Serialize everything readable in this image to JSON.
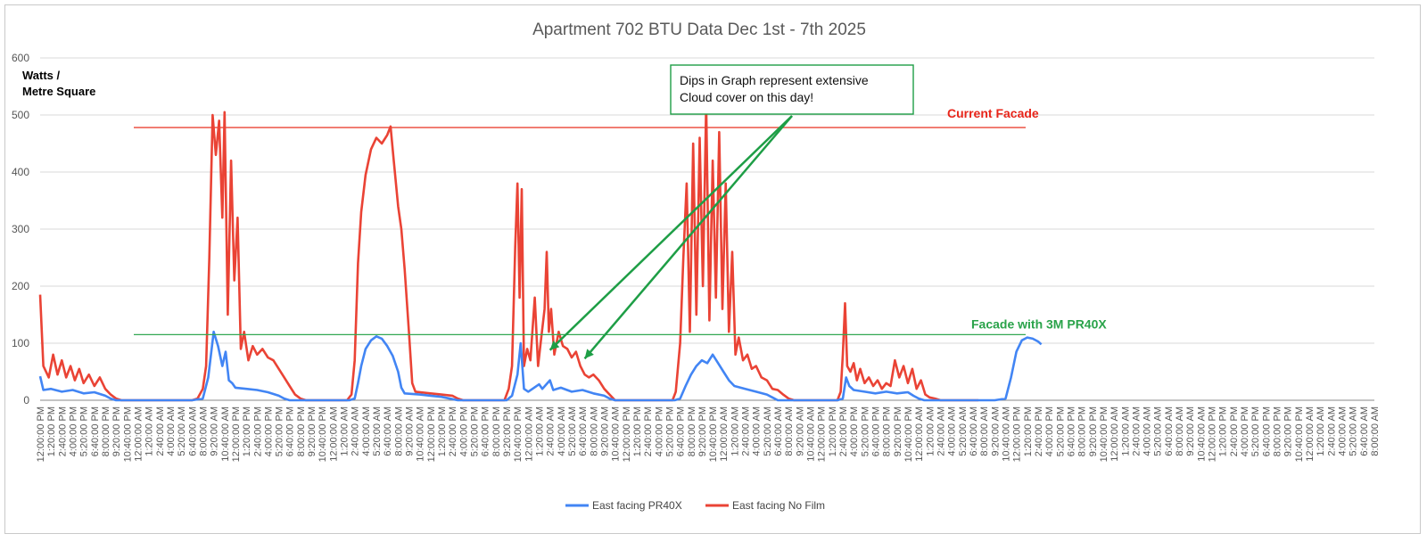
{
  "chart_data": {
    "type": "line",
    "title": "Apartment 702 BTU Data Dec 1st  -  7th 2025",
    "ylabel_lines": [
      "Watts /",
      "Metre Square"
    ],
    "xlabel": "",
    "ylim": [
      0,
      600
    ],
    "y_ticks": [
      0,
      100,
      200,
      300,
      400,
      500,
      600
    ],
    "grid": true,
    "legend_position": "bottom",
    "x_tick_labels": [
      "12:00:00 PM",
      "1:20:00 PM",
      "2:40:00 PM",
      "4:00:00 PM",
      "5:20:00 PM",
      "6:40:00 PM",
      "8:00:00 PM",
      "9:20:00 PM",
      "10:40:00 PM",
      "12:00:00 AM",
      "1:20:00 AM",
      "2:40:00 AM",
      "4:00:00 AM",
      "5:20:00 AM",
      "6:40:00 AM",
      "8:00:00 AM",
      "9:20:00 AM",
      "10:40:00 AM",
      "12:00:00 PM",
      "1:20:00 PM",
      "2:40:00 PM",
      "4:00:00 PM",
      "5:20:00 PM",
      "6:40:00 PM",
      "8:00:00 PM",
      "9:20:00 PM",
      "10:40:00 PM",
      "12:00:00 AM",
      "1:20:00 AM",
      "2:40:00 AM",
      "4:00:00 AM",
      "5:20:00 AM",
      "6:40:00 AM",
      "8:00:00 AM",
      "9:20:00 AM",
      "10:40:00 AM",
      "12:00:00 PM",
      "1:20:00 PM",
      "2:40:00 PM",
      "4:00:00 PM",
      "5:20:00 PM",
      "6:40:00 PM",
      "8:00:00 PM",
      "9:20:00 PM",
      "10:40:00 PM",
      "12:00:00 AM",
      "1:20:00 AM",
      "2:40:00 AM",
      "4:00:00 AM",
      "5:20:00 AM",
      "6:40:00 AM",
      "8:00:00 AM",
      "9:20:00 AM",
      "10:40:00 AM",
      "12:00:00 PM",
      "1:20:00 PM",
      "2:40:00 PM",
      "4:00:00 PM",
      "5:20:00 PM",
      "6:40:00 PM",
      "8:00:00 PM",
      "9:20:00 PM",
      "10:40:00 PM",
      "12:00:00 AM",
      "1:20:00 AM",
      "2:40:00 AM",
      "4:00:00 AM",
      "5:20:00 AM",
      "6:40:00 AM",
      "8:00:00 AM",
      "9:20:00 AM",
      "10:40:00 AM",
      "12:00:00 PM",
      "1:20:00 PM",
      "2:40:00 PM",
      "4:00:00 PM",
      "5:20:00 PM",
      "6:40:00 PM",
      "8:00:00 PM",
      "9:20:00 PM",
      "10:40:00 PM",
      "12:00:00 AM",
      "1:20:00 AM",
      "2:40:00 AM",
      "4:00:00 AM",
      "5:20:00 AM",
      "6:40:00 AM",
      "8:00:00 AM",
      "9:20:00 AM",
      "10:40:00 AM",
      "12:00:00 PM",
      "1:20:00 PM",
      "2:40:00 PM",
      "4:00:00 PM",
      "5:20:00 PM",
      "6:40:00 PM",
      "8:00:00 PM",
      "9:20:00 PM",
      "10:40:00 PM",
      "12:00:00 AM",
      "1:20:00 AM",
      "2:40:00 AM",
      "4:00:00 AM",
      "5:20:00 AM",
      "6:40:00 AM",
      "8:00:00 AM",
      "9:20:00 AM",
      "10:40:00 AM",
      "12:00:00 PM",
      "1:20:00 PM",
      "2:40:00 PM",
      "4:00:00 PM",
      "5:20:00 PM",
      "6:40:00 PM",
      "8:00:00 PM",
      "9:20:00 PM",
      "10:40:00 PM",
      "12:00:00 AM",
      "1:20:00 AM",
      "2:40:00 AM",
      "4:00:00 AM",
      "5:20:00 AM",
      "6:40:00 AM",
      "8:00:00 AM"
    ],
    "series": [
      {
        "name": "East facing PR40X",
        "color": "#4285f4",
        "points": [
          [
            0,
            42
          ],
          [
            0.3,
            18
          ],
          [
            1,
            20
          ],
          [
            2,
            15
          ],
          [
            3,
            18
          ],
          [
            4,
            12
          ],
          [
            5,
            14
          ],
          [
            6,
            8
          ],
          [
            6.5,
            3
          ],
          [
            7,
            0
          ],
          [
            14,
            0
          ],
          [
            15,
            3
          ],
          [
            15.5,
            40
          ],
          [
            16,
            120
          ],
          [
            16.4,
            95
          ],
          [
            16.8,
            60
          ],
          [
            17.1,
            85
          ],
          [
            17.4,
            35
          ],
          [
            17.7,
            30
          ],
          [
            18,
            22
          ],
          [
            19,
            20
          ],
          [
            20,
            18
          ],
          [
            21,
            14
          ],
          [
            22,
            8
          ],
          [
            22.5,
            3
          ],
          [
            23,
            0
          ],
          [
            28.5,
            0
          ],
          [
            29,
            3
          ],
          [
            29.3,
            30
          ],
          [
            29.6,
            60
          ],
          [
            30,
            90
          ],
          [
            30.5,
            105
          ],
          [
            31,
            112
          ],
          [
            31.5,
            108
          ],
          [
            32,
            95
          ],
          [
            32.5,
            78
          ],
          [
            33,
            50
          ],
          [
            33.3,
            22
          ],
          [
            33.6,
            12
          ],
          [
            35,
            10
          ],
          [
            36,
            8
          ],
          [
            37,
            6
          ],
          [
            38,
            2
          ],
          [
            38.5,
            0
          ],
          [
            43,
            0
          ],
          [
            43.5,
            8
          ],
          [
            44,
            45
          ],
          [
            44.3,
            100
          ],
          [
            44.6,
            20
          ],
          [
            45,
            15
          ],
          [
            46,
            28
          ],
          [
            46.3,
            20
          ],
          [
            47,
            35
          ],
          [
            47.3,
            18
          ],
          [
            48,
            22
          ],
          [
            49,
            15
          ],
          [
            50,
            18
          ],
          [
            51,
            12
          ],
          [
            52,
            8
          ],
          [
            52.5,
            3
          ],
          [
            53,
            0
          ],
          [
            58.5,
            0
          ],
          [
            59,
            3
          ],
          [
            59.5,
            25
          ],
          [
            60,
            45
          ],
          [
            60.5,
            60
          ],
          [
            61,
            70
          ],
          [
            61.5,
            65
          ],
          [
            62,
            80
          ],
          [
            62.5,
            65
          ],
          [
            63,
            50
          ],
          [
            63.5,
            35
          ],
          [
            64,
            25
          ],
          [
            65,
            20
          ],
          [
            66,
            15
          ],
          [
            67,
            10
          ],
          [
            67.5,
            5
          ],
          [
            68,
            0
          ],
          [
            73.5,
            0
          ],
          [
            74,
            3
          ],
          [
            74.3,
            40
          ],
          [
            74.6,
            25
          ],
          [
            75,
            18
          ],
          [
            76,
            15
          ],
          [
            77,
            12
          ],
          [
            78,
            15
          ],
          [
            79,
            12
          ],
          [
            80,
            14
          ],
          [
            80.5,
            8
          ],
          [
            81,
            3
          ],
          [
            81.5,
            0
          ],
          [
            86,
            0
          ],
          [
            87,
            0
          ],
          [
            88,
            0
          ],
          [
            89,
            3
          ],
          [
            89.5,
            40
          ],
          [
            90,
            85
          ],
          [
            90.5,
            105
          ],
          [
            91,
            110
          ],
          [
            91.5,
            108
          ],
          [
            92,
            103
          ],
          [
            92.3,
            98
          ]
        ]
      },
      {
        "name": "East facing No Film",
        "color": "#ea4335",
        "points": [
          [
            0,
            185
          ],
          [
            0.3,
            60
          ],
          [
            0.8,
            40
          ],
          [
            1.2,
            80
          ],
          [
            1.6,
            45
          ],
          [
            2,
            70
          ],
          [
            2.4,
            40
          ],
          [
            2.8,
            60
          ],
          [
            3.2,
            35
          ],
          [
            3.6,
            55
          ],
          [
            4,
            30
          ],
          [
            4.5,
            45
          ],
          [
            5,
            25
          ],
          [
            5.5,
            40
          ],
          [
            6,
            20
          ],
          [
            6.5,
            10
          ],
          [
            7,
            3
          ],
          [
            7.5,
            0
          ],
          [
            14,
            0
          ],
          [
            14.5,
            3
          ],
          [
            15,
            20
          ],
          [
            15.3,
            60
          ],
          [
            15.6,
            250
          ],
          [
            15.9,
            500
          ],
          [
            16.2,
            430
          ],
          [
            16.5,
            490
          ],
          [
            16.8,
            320
          ],
          [
            17,
            505
          ],
          [
            17.3,
            150
          ],
          [
            17.6,
            420
          ],
          [
            17.9,
            210
          ],
          [
            18.2,
            320
          ],
          [
            18.5,
            90
          ],
          [
            18.8,
            120
          ],
          [
            19.2,
            70
          ],
          [
            19.6,
            95
          ],
          [
            20,
            80
          ],
          [
            20.5,
            90
          ],
          [
            21,
            75
          ],
          [
            21.5,
            70
          ],
          [
            22,
            55
          ],
          [
            22.5,
            40
          ],
          [
            23,
            25
          ],
          [
            23.5,
            10
          ],
          [
            24,
            3
          ],
          [
            24.5,
            0
          ],
          [
            28.3,
            0
          ],
          [
            28.7,
            10
          ],
          [
            29,
            70
          ],
          [
            29.3,
            240
          ],
          [
            29.6,
            330
          ],
          [
            30,
            395
          ],
          [
            30.5,
            440
          ],
          [
            31,
            460
          ],
          [
            31.5,
            450
          ],
          [
            32,
            465
          ],
          [
            32.3,
            480
          ],
          [
            32.6,
            420
          ],
          [
            33,
            340
          ],
          [
            33.3,
            300
          ],
          [
            33.6,
            230
          ],
          [
            34,
            120
          ],
          [
            34.3,
            30
          ],
          [
            34.6,
            15
          ],
          [
            36,
            12
          ],
          [
            37,
            10
          ],
          [
            38,
            8
          ],
          [
            38.5,
            3
          ],
          [
            39,
            0
          ],
          [
            42.8,
            0
          ],
          [
            43.2,
            20
          ],
          [
            43.5,
            60
          ],
          [
            43.8,
            270
          ],
          [
            44,
            380
          ],
          [
            44.2,
            180
          ],
          [
            44.4,
            370
          ],
          [
            44.6,
            60
          ],
          [
            44.9,
            90
          ],
          [
            45.2,
            70
          ],
          [
            45.6,
            180
          ],
          [
            45.9,
            60
          ],
          [
            46.2,
            110
          ],
          [
            46.5,
            160
          ],
          [
            46.7,
            260
          ],
          [
            46.9,
            120
          ],
          [
            47.1,
            160
          ],
          [
            47.4,
            80
          ],
          [
            47.8,
            120
          ],
          [
            48.2,
            95
          ],
          [
            48.6,
            90
          ],
          [
            49,
            75
          ],
          [
            49.4,
            85
          ],
          [
            49.8,
            60
          ],
          [
            50.2,
            45
          ],
          [
            50.6,
            40
          ],
          [
            51,
            45
          ],
          [
            51.5,
            35
          ],
          [
            52,
            20
          ],
          [
            52.5,
            10
          ],
          [
            53,
            0
          ],
          [
            58.3,
            0
          ],
          [
            58.6,
            15
          ],
          [
            59,
            100
          ],
          [
            59.3,
            250
          ],
          [
            59.6,
            380
          ],
          [
            59.9,
            120
          ],
          [
            60.2,
            450
          ],
          [
            60.5,
            150
          ],
          [
            60.8,
            460
          ],
          [
            61.1,
            200
          ],
          [
            61.4,
            520
          ],
          [
            61.7,
            140
          ],
          [
            62,
            420
          ],
          [
            62.3,
            180
          ],
          [
            62.6,
            470
          ],
          [
            62.9,
            160
          ],
          [
            63.2,
            380
          ],
          [
            63.5,
            120
          ],
          [
            63.8,
            260
          ],
          [
            64.1,
            80
          ],
          [
            64.4,
            110
          ],
          [
            64.8,
            70
          ],
          [
            65.2,
            80
          ],
          [
            65.6,
            55
          ],
          [
            66,
            60
          ],
          [
            66.5,
            40
          ],
          [
            67,
            35
          ],
          [
            67.5,
            20
          ],
          [
            68,
            18
          ],
          [
            68.5,
            10
          ],
          [
            69,
            3
          ],
          [
            69.5,
            0
          ],
          [
            73.5,
            0
          ],
          [
            73.8,
            15
          ],
          [
            74,
            80
          ],
          [
            74.2,
            170
          ],
          [
            74.4,
            60
          ],
          [
            74.7,
            50
          ],
          [
            75,
            65
          ],
          [
            75.3,
            35
          ],
          [
            75.6,
            55
          ],
          [
            76,
            30
          ],
          [
            76.4,
            40
          ],
          [
            76.8,
            25
          ],
          [
            77.2,
            35
          ],
          [
            77.6,
            20
          ],
          [
            78,
            30
          ],
          [
            78.4,
            25
          ],
          [
            78.8,
            70
          ],
          [
            79.2,
            40
          ],
          [
            79.6,
            60
          ],
          [
            80,
            30
          ],
          [
            80.4,
            55
          ],
          [
            80.8,
            20
          ],
          [
            81.2,
            35
          ],
          [
            81.6,
            10
          ],
          [
            82,
            5
          ],
          [
            82.5,
            3
          ],
          [
            83,
            0
          ],
          [
            86.5,
            0
          ]
        ]
      }
    ],
    "reference_lines": [
      {
        "label": "Current Facade",
        "value": 478,
        "color": "#ea4335",
        "label_color": "#e8251a"
      },
      {
        "label": "Facade with 3M PR40X",
        "value": 115,
        "color": "#34a853",
        "label_color": "#2aa34a"
      }
    ],
    "annotation": {
      "lines": [
        "Dips in Graph represent extensive",
        "Cloud cover on this day!"
      ],
      "border_color": "#1e9e46",
      "arrow_color": "#1e9e46",
      "arrow_targets": [
        [
          47,
          88
        ],
        [
          50.2,
          73
        ]
      ]
    }
  }
}
